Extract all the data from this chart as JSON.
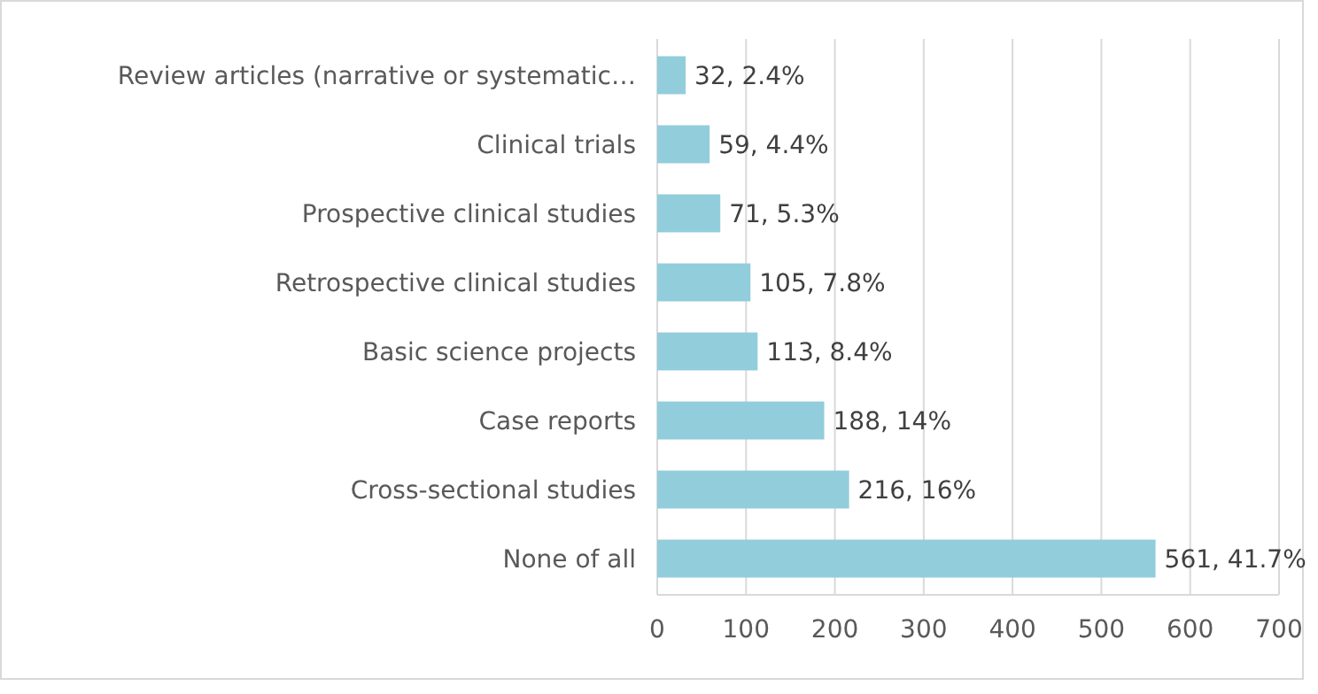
{
  "chart_data": {
    "type": "bar",
    "orientation": "horizontal",
    "categories": [
      "Review articles (narrative or systematic…",
      "Clinical trials",
      "Prospective clinical studies",
      "Retrospective clinical studies",
      "Basic science projects",
      "Case reports",
      "Cross-sectional studies",
      "None of all"
    ],
    "values": [
      32,
      59,
      71,
      105,
      113,
      188,
      216,
      561
    ],
    "value_labels": [
      "32, 2.4%",
      "59, 4.4%",
      "71, 5.3%",
      "105, 7.8%",
      "113, 8.4%",
      "188, 14%",
      "216, 16%",
      "561, 41.7%"
    ],
    "color": "#92cddc",
    "xlim": [
      0,
      700
    ],
    "xticks": [
      0,
      100,
      200,
      300,
      400,
      500,
      600,
      700
    ],
    "grid": "x"
  }
}
